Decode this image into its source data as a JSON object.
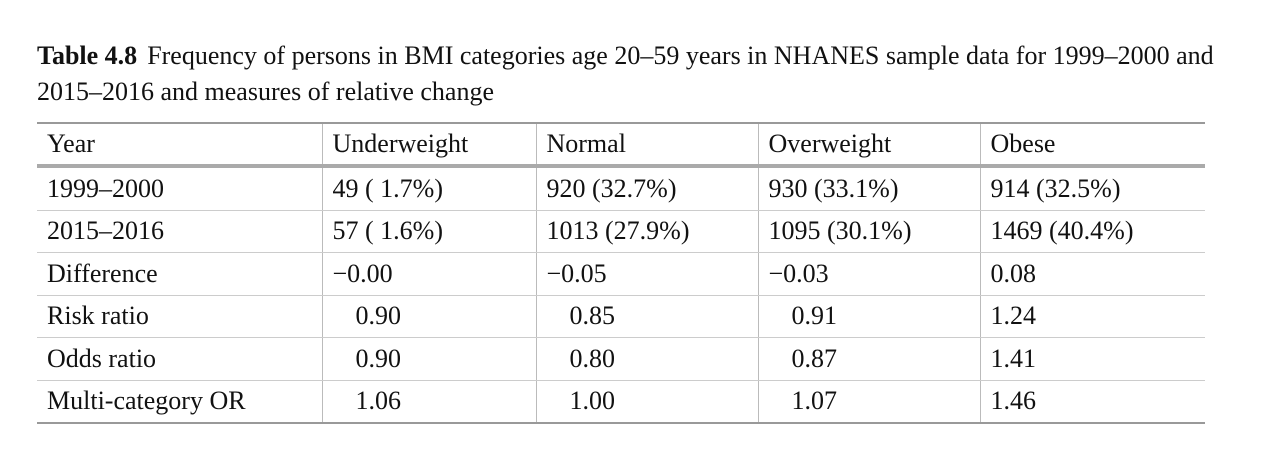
{
  "caption": {
    "label": "Table 4.8",
    "text": "Frequency of persons in BMI categories age 20–59 years in NHANES sample data for 1999–2000 and 2015–2016 and measures of relative change"
  },
  "table": {
    "header": [
      "Year",
      "Underweight",
      "Normal",
      "Overweight",
      "Obese"
    ],
    "rows": [
      [
        "1999–2000",
        "49 ( 1.7%)",
        "920 (32.7%)",
        "930 (33.1%)",
        "914 (32.5%)"
      ],
      [
        "2015–2016",
        "57 ( 1.6%)",
        "1013 (27.9%)",
        "1095 (30.1%)",
        "1469 (40.4%)"
      ],
      [
        "Difference",
        "−0.00",
        "−0.05",
        "−0.03",
        "0.08"
      ],
      [
        "Risk ratio",
        "0.90",
        "0.85",
        "0.91",
        "1.24"
      ],
      [
        "Odds ratio",
        "0.90",
        "0.80",
        "0.87",
        "1.41"
      ],
      [
        "Multi-category OR",
        "1.06",
        "1.00",
        "1.07",
        "1.46"
      ]
    ]
  }
}
